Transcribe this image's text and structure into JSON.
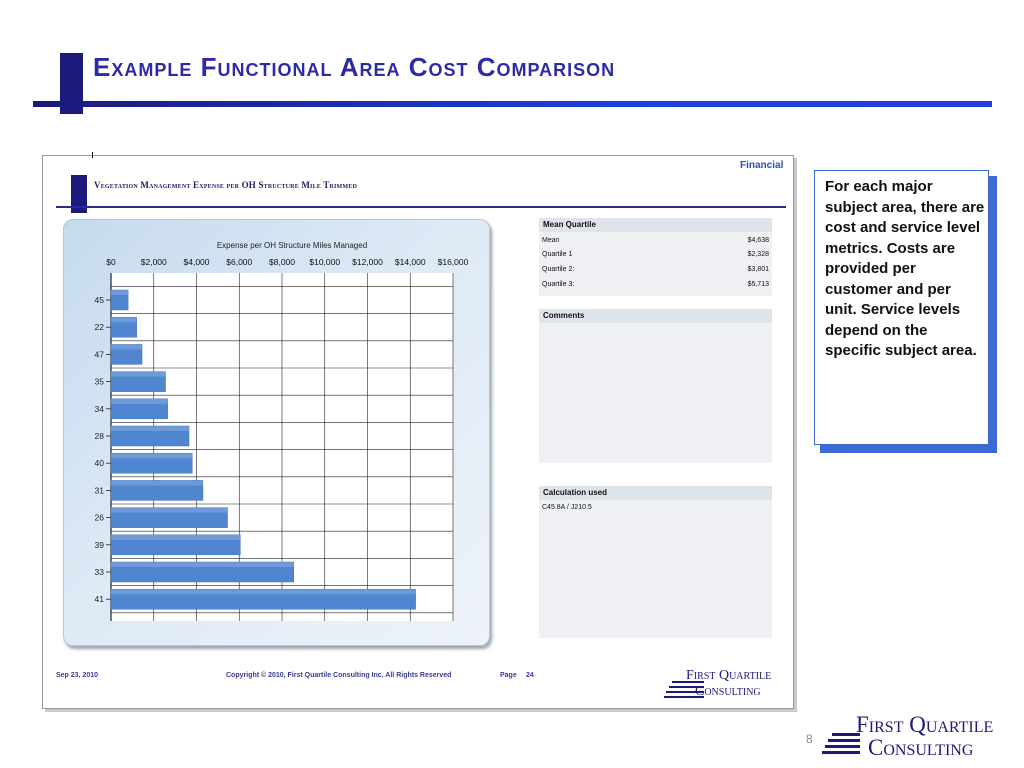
{
  "slide": {
    "title": "Example Functional Area Cost Comparison",
    "page_number": "8",
    "logo_line1": "First Quartile",
    "logo_line2": "Consulting"
  },
  "report": {
    "category": "Financial",
    "title": "Vegetation Management Expense per OH Structure Mile Trimmed",
    "footer_date": "Sep 23, 2010",
    "footer_copyright": "Copyright © 2010, First Quartile Consulting Inc. All Rights Reserved",
    "footer_page_label": "Page",
    "footer_page_number": "24",
    "logo_line1": "First Quartile",
    "logo_line2": "Consulting"
  },
  "mean_quartile": {
    "header": "Mean Quartile",
    "rows": [
      {
        "label": "Mean",
        "value": "$4,638"
      },
      {
        "label": "Quartile 1",
        "value": "$2,328"
      },
      {
        "label": "Quartile 2:",
        "value": "$3,801"
      },
      {
        "label": "Quartile 3:",
        "value": "$5,713"
      }
    ]
  },
  "comments": {
    "header": "Comments"
  },
  "calculation": {
    "header": "Calculation used",
    "value": "C45.8A / J210.5"
  },
  "note_text": "For each major subject area, there are cost and service level metrics.  Costs are provided per customer and per unit.  Service levels depend on the specific subject area.",
  "colors": {
    "bar": "#4f86cf",
    "title_blue": "#2c2aa6",
    "navy": "#1c1a7a",
    "accent_blue": "#3d6bd6"
  },
  "chart_data": {
    "type": "bar",
    "orientation": "horizontal",
    "title": "Expense per OH Structure Miles Managed",
    "xlim": [
      0,
      16000
    ],
    "tick_values": [
      0,
      2000,
      4000,
      6000,
      8000,
      10000,
      12000,
      14000,
      16000
    ],
    "tick_labels": [
      "$0",
      "$2,000",
      "$4,000",
      "$6,000",
      "$8,000",
      "$10,000",
      "$12,000",
      "$14,000",
      "$16,000"
    ],
    "grid": true,
    "categories": [
      "45",
      "22",
      "47",
      "35",
      "34",
      "28",
      "40",
      "31",
      "26",
      "39",
      "33",
      "41"
    ],
    "values": [
      800,
      1200,
      1450,
      2550,
      2650,
      3650,
      3800,
      4300,
      5450,
      6050,
      8550,
      14250
    ]
  }
}
